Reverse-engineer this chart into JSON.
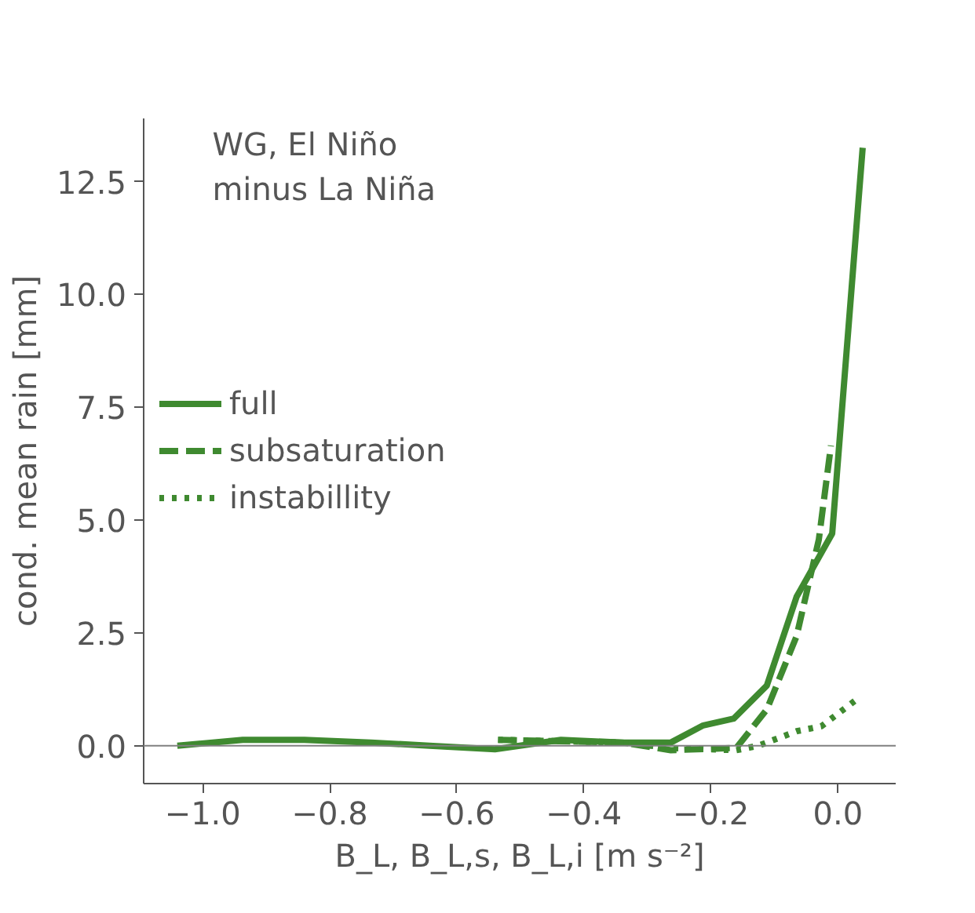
{
  "chart_data": {
    "type": "line",
    "xlabel": "B_L, B_L,s, B_L,i [m s⁻²]",
    "ylabel": "cond. mean rain [mm]",
    "annotations": [
      "WG, El Niño\n minus La Niña"
    ],
    "xlim": [
      -1.093,
      0.091
    ],
    "ylim": [
      -0.84,
      13.9
    ],
    "xticks": [
      {
        "value": -1.0,
        "label": "−1.0"
      },
      {
        "value": -0.8,
        "label": "−0.8"
      },
      {
        "value": -0.6,
        "label": "−0.6"
      },
      {
        "value": -0.4,
        "label": "−0.4"
      },
      {
        "value": -0.2,
        "label": "−0.2"
      },
      {
        "value": 0.0,
        "label": "0.0"
      }
    ],
    "yticks": [
      {
        "value": 0.0,
        "label": "0.0"
      },
      {
        "value": 2.5,
        "label": "2.5"
      },
      {
        "value": 5.0,
        "label": "5.0"
      },
      {
        "value": 7.5,
        "label": "7.5"
      },
      {
        "value": 10.0,
        "label": "10.0"
      },
      {
        "value": 12.5,
        "label": "12.5"
      }
    ],
    "ref_lines": [
      {
        "axis": "y",
        "value": 0,
        "color": "#808080"
      }
    ],
    "legend": "left",
    "grid": false,
    "series": [
      {
        "name": "full",
        "color": "#3f8a30",
        "line_style": "solid",
        "x": [
          -1.04,
          -0.937,
          -0.84,
          -0.735,
          -0.643,
          -0.54,
          -0.436,
          -0.34,
          -0.263,
          -0.212,
          -0.164,
          -0.112,
          -0.065,
          -0.009,
          0.039
        ],
        "values": [
          0.0,
          0.13,
          0.13,
          0.07,
          0.0,
          -0.08,
          0.13,
          0.07,
          0.07,
          0.45,
          0.6,
          1.33,
          3.3,
          4.7,
          13.25
        ]
      },
      {
        "name": "subsaturation",
        "color": "#3f8a30",
        "line_style": "dashed",
        "x": [
          -0.535,
          -0.44,
          -0.34,
          -0.263,
          -0.16,
          -0.112,
          -0.065,
          -0.03,
          -0.011
        ],
        "values": [
          0.13,
          0.1,
          0.07,
          -0.1,
          -0.05,
          0.8,
          2.43,
          4.57,
          6.65
        ]
      },
      {
        "name": "instabillity",
        "color": "#3f8a30",
        "line_style": "dotted",
        "x": [
          -0.535,
          -0.44,
          -0.34,
          -0.263,
          -0.16,
          -0.125,
          -0.065,
          -0.026,
          0.03
        ],
        "values": [
          0.13,
          0.1,
          0.07,
          -0.05,
          -0.1,
          0.0,
          0.32,
          0.43,
          1.03
        ]
      }
    ]
  }
}
